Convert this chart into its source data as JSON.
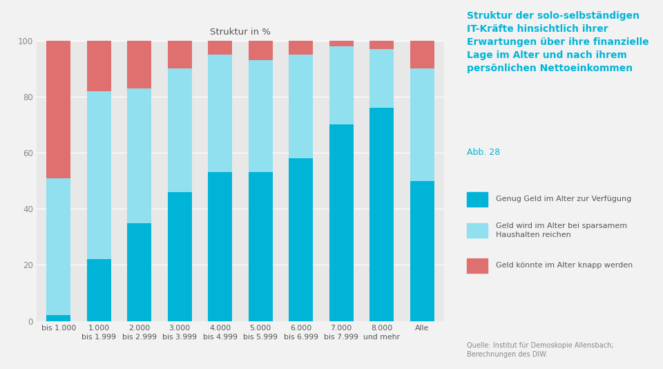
{
  "categories": [
    "bis 1.000",
    "1.000\nbis 1.999",
    "2.000\nbis 2.999",
    "3.000\nbis 3.999",
    "4.000\nbis 4.999",
    "5.000\nbis 5.999",
    "6.000\nbis 6.999",
    "7.000\nbis 7.999",
    "8.000\nund mehr",
    "Alle"
  ],
  "dark_blue": [
    2,
    22,
    35,
    46,
    53,
    53,
    58,
    70,
    76,
    50
  ],
  "light_blue": [
    49,
    60,
    48,
    44,
    42,
    40,
    37,
    28,
    21,
    40
  ],
  "red": [
    49,
    18,
    17,
    10,
    5,
    7,
    5,
    2,
    3,
    10
  ],
  "color_dark_blue": "#00b4d8",
  "color_light_blue": "#90e0ef",
  "color_red": "#e07070",
  "chart_title": "Struktur in %",
  "fig_bg": "#f2f2f2",
  "chart_bg": "#e8e8e8",
  "right_bg": "#ffffff",
  "right_title": "Struktur der solo-selbständigen\nIT-Kräfte hinsichtlich ihrer\nErwartungen über ihre finanzielle\nLage im Alter und nach ihrem\npersönlichen Nettoeinkommen",
  "right_subtitle": "Abb. 28",
  "legend_entries": [
    "Genug Geld im Alter zur Verfügung",
    "Geld wird im Alter bei sparsamem\nHaushalten reichen",
    "Geld könnte im Alter knapp werden"
  ],
  "source_text": "Quelle: Institut für Demoskopie Allensbach;\nBerechnungen des DIW.",
  "ylim": [
    0,
    100
  ],
  "yticks": [
    0,
    20,
    40,
    60,
    80,
    100
  ]
}
